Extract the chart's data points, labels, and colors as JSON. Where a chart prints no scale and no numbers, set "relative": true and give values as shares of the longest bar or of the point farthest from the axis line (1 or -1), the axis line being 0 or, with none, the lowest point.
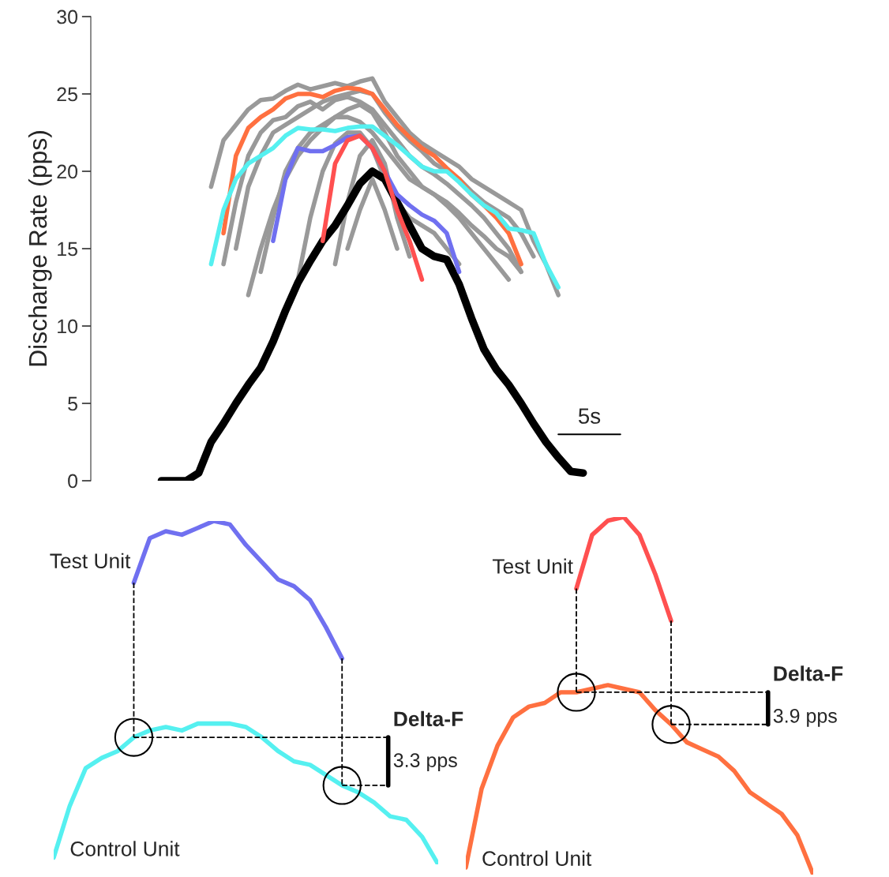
{
  "chart_data": [
    {
      "type": "line",
      "ylabel": "Discharge Rate (pps)",
      "ylim": [
        0,
        30
      ],
      "yticks": [
        0,
        5,
        10,
        15,
        20,
        25,
        30
      ],
      "tick_labels": "y",
      "grid": false,
      "legend": false,
      "categories": [
        null,
        null,
        null,
        null,
        null,
        null,
        null,
        null,
        null,
        null,
        null,
        null,
        null,
        null,
        null,
        null,
        null,
        null,
        null,
        null,
        null,
        null,
        null,
        null,
        null,
        null,
        null,
        null,
        null,
        null,
        null,
        null,
        null,
        null,
        null
      ],
      "annotations": [
        "5s"
      ],
      "series": [
        {
          "color": "#999999",
          "values": [
            null,
            null,
            null,
            null,
            19,
            22,
            23,
            24,
            24.6,
            24.7,
            25.2,
            25.6,
            25.3,
            25.5,
            25.7,
            25.5,
            25.8,
            26,
            24.5,
            23.5,
            22.5,
            21.8,
            21.3,
            20.8,
            20.3,
            19.5,
            19,
            18.5,
            18,
            17.5,
            15.5,
            14,
            12,
            null,
            null
          ]
        },
        {
          "color": "#999999",
          "values": [
            null,
            null,
            null,
            null,
            null,
            14,
            18,
            21,
            22.5,
            23.3,
            23.5,
            24.2,
            24.5,
            24,
            24.6,
            24.8,
            24.5,
            24,
            23,
            22,
            21,
            20.3,
            19.8,
            19.2,
            18.5,
            17.8,
            17,
            16,
            15,
            13.5,
            null,
            null,
            null,
            null,
            null
          ]
        },
        {
          "color": "#999999",
          "values": [
            null,
            null,
            null,
            null,
            null,
            null,
            null,
            12,
            15,
            17.5,
            19.5,
            21,
            22,
            22.8,
            23.5,
            24,
            24.3,
            23.8,
            22.5,
            21,
            20,
            19,
            18.5,
            17.8,
            17,
            16,
            15,
            14,
            13,
            null,
            null,
            null,
            null,
            null,
            null
          ]
        },
        {
          "color": "#999999",
          "values": [
            null,
            null,
            null,
            null,
            null,
            null,
            null,
            null,
            null,
            null,
            null,
            null,
            null,
            null,
            null,
            15,
            17.5,
            19.5,
            17.5,
            15,
            null,
            null,
            null,
            null,
            null,
            null,
            null,
            null,
            null,
            null,
            null,
            null,
            null,
            null,
            null
          ]
        },
        {
          "color": "#999999",
          "values": [
            null,
            null,
            null,
            null,
            null,
            null,
            null,
            null,
            null,
            null,
            null,
            null,
            null,
            null,
            14,
            18,
            21,
            22,
            20.5,
            17,
            14.5,
            null,
            null,
            null,
            null,
            null,
            null,
            null,
            null,
            null,
            null,
            null,
            null,
            null,
            null
          ]
        },
        {
          "color": "#999999",
          "values": [
            null,
            null,
            null,
            null,
            null,
            null,
            null,
            null,
            null,
            null,
            null,
            13,
            17,
            20,
            21.8,
            22.5,
            22.5,
            21.5,
            19.5,
            18,
            17,
            16.5,
            16,
            15,
            14,
            null,
            null,
            null,
            null,
            null,
            null,
            null,
            null,
            null,
            null
          ]
        },
        {
          "color": "#999999",
          "values": [
            null,
            null,
            null,
            null,
            null,
            null,
            null,
            null,
            13.5,
            17,
            20,
            21.5,
            22.5,
            23,
            23.5,
            23.5,
            23.2,
            22.5,
            21.5,
            20.5,
            19.5,
            19,
            18.5,
            18,
            17.3,
            16.5,
            15.8,
            15,
            14.5,
            13.5,
            null,
            null,
            null,
            null,
            null
          ]
        },
        {
          "color": "#999999",
          "values": [
            null,
            null,
            null,
            null,
            null,
            null,
            15,
            19,
            21,
            22.5,
            23,
            23.5,
            24,
            24.5,
            24.8,
            25,
            25.2,
            25,
            23.8,
            22.8,
            22,
            21.3,
            20.5,
            20,
            19.5,
            18.7,
            18,
            17.5,
            17,
            16,
            14.5,
            null,
            null,
            null,
            null
          ]
        },
        {
          "color": "#000000",
          "values": [
            0,
            0,
            0,
            0.5,
            2.5,
            3.7,
            5,
            6.2,
            7.3,
            9,
            11,
            12.8,
            14.2,
            15.5,
            16.5,
            17.8,
            19.2,
            20,
            19.5,
            18,
            16.5,
            15,
            14.5,
            14.3,
            12.7,
            10.5,
            8.5,
            7.2,
            6.2,
            5,
            3.7,
            2.5,
            1.5,
            0.6,
            0.5
          ]
        },
        {
          "color": "#ff7040",
          "values": [
            null,
            null,
            null,
            null,
            null,
            16,
            21,
            22.8,
            23.5,
            24,
            24.7,
            25,
            25,
            24.8,
            25.2,
            25.4,
            25.3,
            25,
            24,
            23,
            22.2,
            21.5,
            21,
            20.2,
            19.5,
            18.5,
            17.8,
            17,
            16,
            14,
            null,
            null,
            null,
            null,
            null
          ]
        },
        {
          "color": "#55f0f0",
          "values": [
            null,
            null,
            null,
            null,
            14,
            17.5,
            19.5,
            20.5,
            21,
            21.5,
            22.3,
            22.8,
            22.7,
            22.7,
            22.6,
            22.8,
            22.9,
            22.9,
            22.3,
            21.7,
            21,
            20.3,
            20,
            20,
            19.3,
            18.5,
            17.8,
            17.3,
            16.3,
            16.2,
            16,
            14,
            12.5,
            null,
            null
          ]
        },
        {
          "color": "#7070f0",
          "values": [
            null,
            null,
            null,
            null,
            null,
            null,
            null,
            null,
            null,
            15.5,
            19.5,
            21.5,
            21.3,
            21.3,
            21.7,
            22.2,
            22.3,
            21.5,
            20,
            18.5,
            17.8,
            17.2,
            16.8,
            16,
            13.5,
            null,
            null,
            null,
            null,
            null,
            null,
            null,
            null,
            null,
            null
          ]
        },
        {
          "color": "#ff5050",
          "values": [
            null,
            null,
            null,
            null,
            null,
            null,
            null,
            null,
            null,
            null,
            null,
            null,
            null,
            15.5,
            20.5,
            22,
            22.3,
            21.5,
            20,
            17.5,
            15.5,
            13,
            null,
            null,
            null,
            null,
            null,
            null,
            null,
            null,
            null,
            null,
            null,
            null,
            null
          ]
        }
      ]
    },
    {
      "type": "line",
      "relative": true,
      "tick_labels": false,
      "legend": false,
      "categories": [
        null,
        null,
        null,
        null,
        null,
        null,
        null,
        null,
        null,
        null,
        null,
        null,
        null,
        null,
        null,
        null,
        null,
        null,
        null,
        null,
        null,
        null,
        null,
        null,
        null
      ],
      "annotations": [
        "Delta-F",
        "3.3 pps"
      ],
      "series": [
        {
          "name": "Test Unit",
          "color": "#7070f0",
          "values": [
            null,
            null,
            null,
            null,
            null,
            0.82,
            0.95,
            0.97,
            0.96,
            0.98,
            1.0,
            0.99,
            0.93,
            0.88,
            0.83,
            0.81,
            0.77,
            0.69,
            0.6,
            null,
            null,
            null,
            null,
            null,
            null
          ]
        },
        {
          "name": "Control Unit",
          "color": "#55f0f0",
          "values": [
            0.02,
            0.17,
            0.28,
            0.31,
            0.33,
            0.37,
            0.39,
            0.4,
            0.39,
            0.41,
            0.41,
            0.41,
            0.4,
            0.37,
            0.33,
            0.3,
            0.29,
            0.26,
            0.23,
            0.21,
            0.18,
            0.14,
            0.13,
            0.08,
            0
          ]
        }
      ]
    },
    {
      "type": "line",
      "relative": true,
      "tick_labels": false,
      "legend": false,
      "categories": [
        null,
        null,
        null,
        null,
        null,
        null,
        null,
        null,
        null,
        null,
        null,
        null,
        null,
        null,
        null,
        null,
        null,
        null,
        null,
        null,
        null,
        null,
        null
      ],
      "annotations": [
        "Delta-F",
        "3.9 pps"
      ],
      "series": [
        {
          "name": "Test Unit",
          "color": "#ff5050",
          "values": [
            null,
            null,
            null,
            null,
            null,
            null,
            null,
            0.8,
            0.95,
            0.99,
            1.0,
            0.95,
            0.84,
            0.71,
            null,
            null,
            null,
            null,
            null,
            null,
            null,
            null,
            null
          ]
        },
        {
          "name": "Control Unit",
          "color": "#ff7040",
          "values": [
            0.02,
            0.24,
            0.36,
            0.44,
            0.47,
            0.48,
            0.51,
            0.51,
            0.52,
            0.53,
            0.52,
            0.51,
            0.46,
            0.42,
            0.37,
            0.35,
            0.33,
            0.29,
            0.23,
            0.2,
            0.17,
            0.11,
            0
          ]
        }
      ]
    }
  ]
}
